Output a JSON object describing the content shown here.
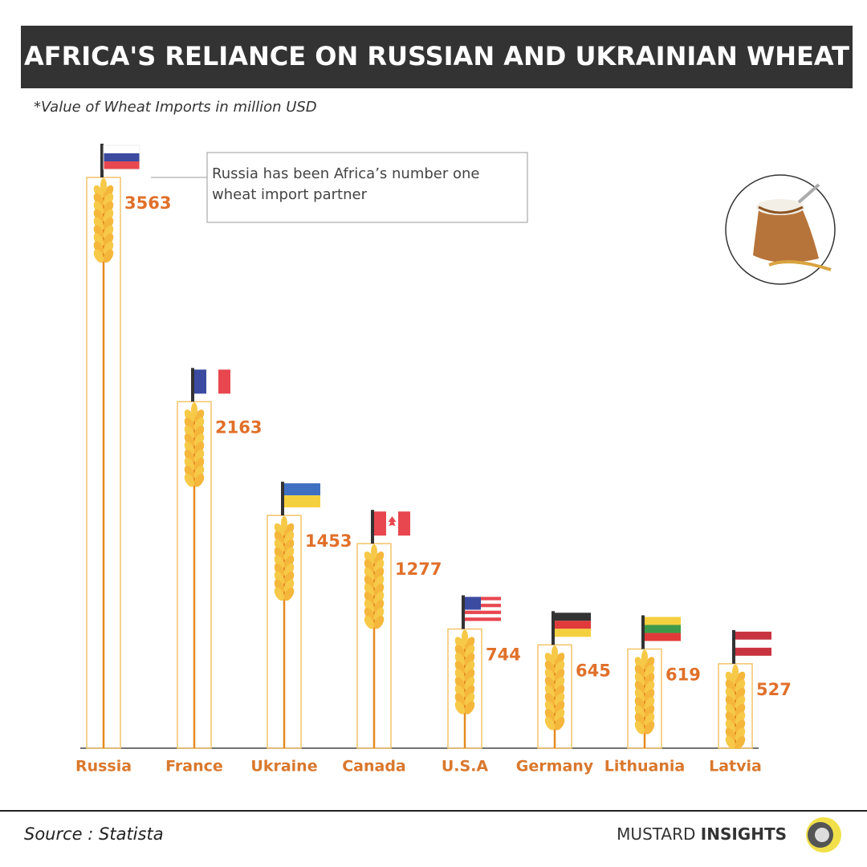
{
  "chart_data": {
    "type": "bar",
    "title": "AFRICA'S RELIANCE ON RUSSIAN AND UKRAINIAN WHEAT",
    "subtitle": "*Value of Wheat Imports in million USD",
    "annotation": "Russia has been Africa’s number one wheat import partner",
    "categories": [
      "Russia",
      "France",
      "Ukraine",
      "Canada",
      "U.S.A",
      "Germany",
      "Lithuania",
      "Latvia"
    ],
    "values": [
      3563,
      2163,
      1453,
      1277,
      744,
      645,
      619,
      527
    ],
    "color": "#f2c46a"
  },
  "footer": {
    "source": "Source : Statista",
    "brand_first": "MUSTARD",
    "brand_second": "INSIGHTS"
  }
}
